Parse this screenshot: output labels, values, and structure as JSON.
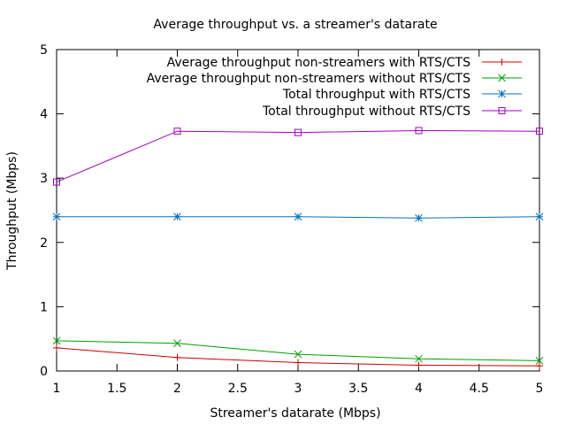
{
  "chart_data": {
    "type": "line",
    "title": "Average throughput vs. a streamer's datarate",
    "xlabel": "Streamer's datarate (Mbps)",
    "ylabel": "Throughput (Mbps)",
    "xlim": [
      1,
      5
    ],
    "ylim": [
      0,
      5
    ],
    "xticks": [
      "1",
      "1.5",
      "2",
      "2.5",
      "3",
      "3.5",
      "4",
      "4.5",
      "5"
    ],
    "yticks": [
      "0",
      "1",
      "2",
      "3",
      "4",
      "5"
    ],
    "grid": false,
    "legend_position": "top-right",
    "x": [
      1,
      2,
      3,
      4,
      5
    ],
    "series": [
      {
        "name": "Average throughput non-streamers with RTS/CTS",
        "color": "#cc0000",
        "marker": "plus",
        "values": [
          0.36,
          0.21,
          0.13,
          0.09,
          0.08
        ]
      },
      {
        "name": "Average throughput non-streamers without RTS/CTS",
        "color": "#00a000",
        "marker": "cross",
        "values": [
          0.47,
          0.43,
          0.26,
          0.19,
          0.16
        ]
      },
      {
        "name": "Total throughput with RTS/CTS",
        "color": "#0070c0",
        "marker": "star",
        "values": [
          2.4,
          2.4,
          2.4,
          2.38,
          2.4
        ]
      },
      {
        "name": "Total throughput without RTS/CTS",
        "color": "#a000c0",
        "marker": "square",
        "values": [
          2.94,
          3.73,
          3.71,
          3.74,
          3.73
        ]
      }
    ]
  }
}
